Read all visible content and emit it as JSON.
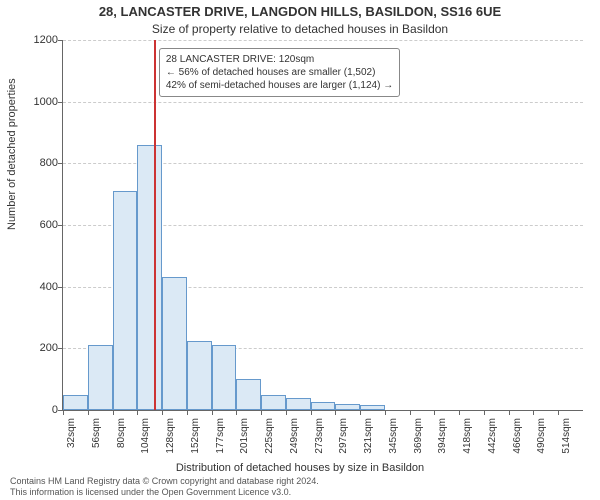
{
  "title_main": "28, LANCASTER DRIVE, LANGDON HILLS, BASILDON, SS16 6UE",
  "title_sub": "Size of property relative to detached houses in Basildon",
  "y_axis_label": "Number of detached properties",
  "x_axis_label": "Distribution of detached houses by size in Basildon",
  "attribution_line1": "Contains HM Land Registry data © Crown copyright and database right 2024.",
  "attribution_line2": "This information is licensed under the Open Government Licence v3.0.",
  "chart": {
    "type": "histogram",
    "background_color": "#ffffff",
    "bar_fill": "#dbe9f5",
    "bar_border": "#6699cc",
    "grid_color": "#cccccc",
    "axis_color": "#666666",
    "marker_color": "#cc3333",
    "ylim": [
      0,
      1200
    ],
    "ytick_step": 200,
    "y_ticks": [
      0,
      200,
      400,
      600,
      800,
      1000,
      1200
    ],
    "x_labels": [
      "32sqm",
      "56sqm",
      "80sqm",
      "104sqm",
      "128sqm",
      "152sqm",
      "177sqm",
      "201sqm",
      "225sqm",
      "249sqm",
      "273sqm",
      "297sqm",
      "321sqm",
      "345sqm",
      "369sqm",
      "394sqm",
      "418sqm",
      "442sqm",
      "466sqm",
      "490sqm",
      "514sqm"
    ],
    "bar_values": [
      50,
      210,
      710,
      860,
      430,
      225,
      210,
      100,
      50,
      40,
      25,
      20,
      15,
      0,
      0,
      0,
      0,
      0,
      0,
      0,
      0
    ],
    "marker_value_sqm": 120,
    "marker_fractional_bin": 3.67,
    "annotation": {
      "line1": "28 LANCASTER DRIVE: 120sqm",
      "line2": "← 56% of detached houses are smaller (1,502)",
      "line3": "42% of semi-detached houses are larger (1,124) →"
    },
    "title_fontsize": 13,
    "subtitle_fontsize": 12,
    "axis_label_fontsize": 11,
    "tick_fontsize": 10,
    "annotation_fontsize": 10
  }
}
